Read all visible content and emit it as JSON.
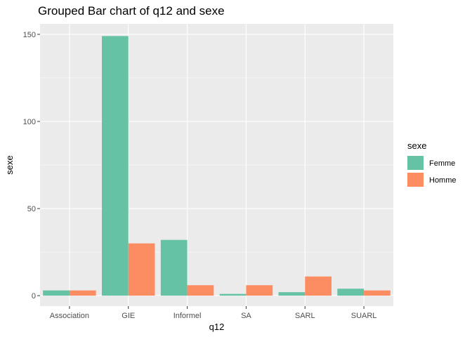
{
  "chart_data": {
    "type": "bar",
    "title": "Grouped Bar chart of q12 and sexe",
    "xlabel": "q12",
    "ylabel": "sexe",
    "categories": [
      "Association",
      "GIE",
      "Informel",
      "SA",
      "SARL",
      "SUARL"
    ],
    "series": [
      {
        "name": "Femme",
        "color": "#66c2a5",
        "values": [
          3,
          149,
          32,
          1,
          2,
          4
        ]
      },
      {
        "name": "Homme",
        "color": "#fc8d62",
        "values": [
          3,
          30,
          6,
          6,
          11,
          3
        ]
      }
    ],
    "ylim": [
      -6,
      156
    ],
    "yticks": [
      0,
      50,
      100,
      150
    ],
    "legend": {
      "title": "sexe",
      "position": "right"
    },
    "grid": true,
    "panel_background": "#ebebeb"
  }
}
